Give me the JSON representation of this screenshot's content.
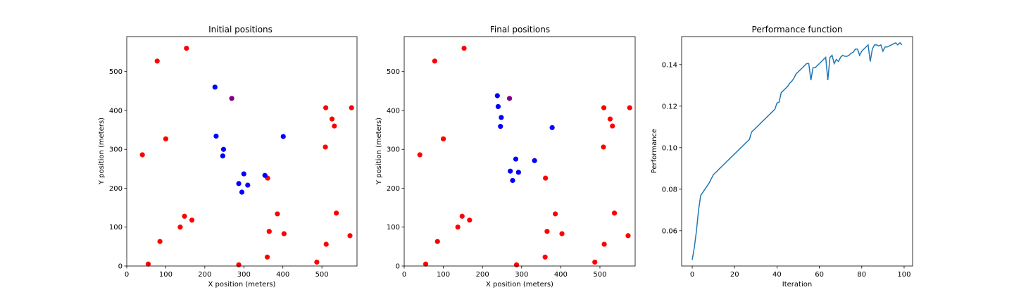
{
  "chart_data": [
    {
      "type": "scatter",
      "title": "Initial positions",
      "xlabel": "X position (meters)",
      "ylabel": "Y position (meters)",
      "xlim": [
        0,
        590
      ],
      "ylim": [
        0,
        590
      ],
      "xticks": [
        "0",
        "100",
        "200",
        "300",
        "400",
        "500"
      ],
      "yticks": [
        "0",
        "100",
        "200",
        "300",
        "400",
        "500"
      ],
      "grid": false,
      "series": [
        {
          "color": "#ff0000",
          "points": [
            [
              78,
              527
            ],
            [
              153,
              560
            ],
            [
              40,
              286
            ],
            [
              100,
              327
            ],
            [
              148,
              128
            ],
            [
              167,
              118
            ],
            [
              137,
              100
            ],
            [
              85,
              63
            ],
            [
              55,
              5
            ],
            [
              510,
              407
            ],
            [
              526,
              378
            ],
            [
              532,
              360
            ],
            [
              576,
              407
            ],
            [
              509,
              306
            ],
            [
              361,
              226
            ],
            [
              386,
              134
            ],
            [
              537,
              136
            ],
            [
              365,
              89
            ],
            [
              403,
              83
            ],
            [
              572,
              78
            ],
            [
              511,
              56
            ],
            [
              360,
              23
            ],
            [
              487,
              10
            ],
            [
              287,
              3
            ]
          ]
        },
        {
          "color": "#0000ff",
          "points": [
            [
              226,
              460
            ],
            [
              229,
              334
            ],
            [
              248,
              300
            ],
            [
              246,
              283
            ],
            [
              300,
              237
            ],
            [
              287,
              212
            ],
            [
              310,
              208
            ],
            [
              295,
              190
            ],
            [
              354,
              233
            ],
            [
              401,
              333
            ]
          ]
        },
        {
          "color": "#800080",
          "points": [
            [
              269,
              431
            ]
          ]
        }
      ]
    },
    {
      "type": "scatter",
      "title": "Final positions",
      "xlabel": "X position (meters)",
      "ylabel": "Y position (meters)",
      "xlim": [
        0,
        590
      ],
      "ylim": [
        0,
        590
      ],
      "xticks": [
        "0",
        "100",
        "200",
        "300",
        "400",
        "500"
      ],
      "yticks": [
        "0",
        "100",
        "200",
        "300",
        "400",
        "500"
      ],
      "grid": false,
      "series": [
        {
          "color": "#ff0000",
          "points": [
            [
              78,
              527
            ],
            [
              153,
              560
            ],
            [
              40,
              286
            ],
            [
              100,
              327
            ],
            [
              148,
              128
            ],
            [
              167,
              118
            ],
            [
              137,
              100
            ],
            [
              85,
              63
            ],
            [
              55,
              5
            ],
            [
              510,
              407
            ],
            [
              526,
              378
            ],
            [
              532,
              360
            ],
            [
              576,
              407
            ],
            [
              509,
              306
            ],
            [
              361,
              226
            ],
            [
              386,
              134
            ],
            [
              537,
              136
            ],
            [
              365,
              89
            ],
            [
              403,
              83
            ],
            [
              572,
              78
            ],
            [
              511,
              56
            ],
            [
              360,
              23
            ],
            [
              487,
              10
            ],
            [
              287,
              3
            ]
          ]
        },
        {
          "color": "#0000ff",
          "points": [
            [
              238,
              438
            ],
            [
              240,
              410
            ],
            [
              248,
              382
            ],
            [
              246,
              359
            ],
            [
              378,
              356
            ],
            [
              285,
              275
            ],
            [
              333,
              271
            ],
            [
              271,
              244
            ],
            [
              292,
              241
            ],
            [
              277,
              220
            ]
          ]
        },
        {
          "color": "#800080",
          "points": [
            [
              269,
              431
            ]
          ]
        }
      ]
    },
    {
      "type": "line",
      "title": "Performance function",
      "xlabel": "Iteration",
      "ylabel": "Performance",
      "xlim": [
        -5,
        104
      ],
      "ylim": [
        0.043,
        0.1535
      ],
      "xticks": [
        0,
        20,
        40,
        60,
        80,
        100
      ],
      "yticks": [
        0.06,
        0.08,
        0.1,
        0.12,
        0.14
      ],
      "grid": false,
      "series": [
        {
          "color": "#1f77b4",
          "x": [
            0,
            1,
            2,
            3,
            4,
            5,
            6,
            7,
            8,
            9,
            10,
            11,
            12,
            13,
            14,
            15,
            16,
            17,
            18,
            19,
            20,
            21,
            22,
            23,
            24,
            25,
            26,
            27,
            28,
            29,
            30,
            31,
            32,
            33,
            34,
            35,
            36,
            37,
            38,
            39,
            40,
            41,
            42,
            43,
            44,
            45,
            46,
            47,
            48,
            49,
            50,
            51,
            52,
            53,
            54,
            55,
            56,
            57,
            58,
            59,
            60,
            61,
            62,
            63,
            64,
            65,
            66,
            67,
            68,
            69,
            70,
            71,
            72,
            73,
            74,
            75,
            76,
            77,
            78,
            79,
            80,
            81,
            82,
            83,
            84,
            85,
            86,
            87,
            88,
            89,
            90,
            91,
            92,
            93,
            94,
            95,
            96,
            97,
            98,
            99
          ],
          "values": [
            0.046,
            0.052,
            0.06,
            0.07,
            0.077,
            0.0785,
            0.08,
            0.0815,
            0.083,
            0.085,
            0.087,
            0.088,
            0.089,
            0.09,
            0.091,
            0.092,
            0.093,
            0.094,
            0.095,
            0.096,
            0.097,
            0.098,
            0.099,
            0.1,
            0.101,
            0.102,
            0.103,
            0.104,
            0.1075,
            0.1085,
            0.1095,
            0.1105,
            0.1115,
            0.1125,
            0.1135,
            0.1145,
            0.1155,
            0.1165,
            0.1175,
            0.1185,
            0.1215,
            0.122,
            0.1265,
            0.1275,
            0.1285,
            0.1295,
            0.131,
            0.132,
            0.1335,
            0.1355,
            0.1365,
            0.1375,
            0.1385,
            0.1395,
            0.1405,
            0.1405,
            0.1325,
            0.1385,
            0.1385,
            0.1395,
            0.1405,
            0.1415,
            0.1425,
            0.1435,
            0.1325,
            0.1435,
            0.1445,
            0.1405,
            0.1425,
            0.1415,
            0.1435,
            0.1445,
            0.144,
            0.144,
            0.1445,
            0.1455,
            0.146,
            0.1475,
            0.1475,
            0.1445,
            0.1465,
            0.1475,
            0.1485,
            0.1495,
            0.1415,
            0.1475,
            0.1495,
            0.1495,
            0.149,
            0.1495,
            0.1465,
            0.1485,
            0.1485,
            0.149,
            0.1495,
            0.15,
            0.1505,
            0.1495,
            0.1505,
            0.1495
          ]
        }
      ]
    }
  ]
}
